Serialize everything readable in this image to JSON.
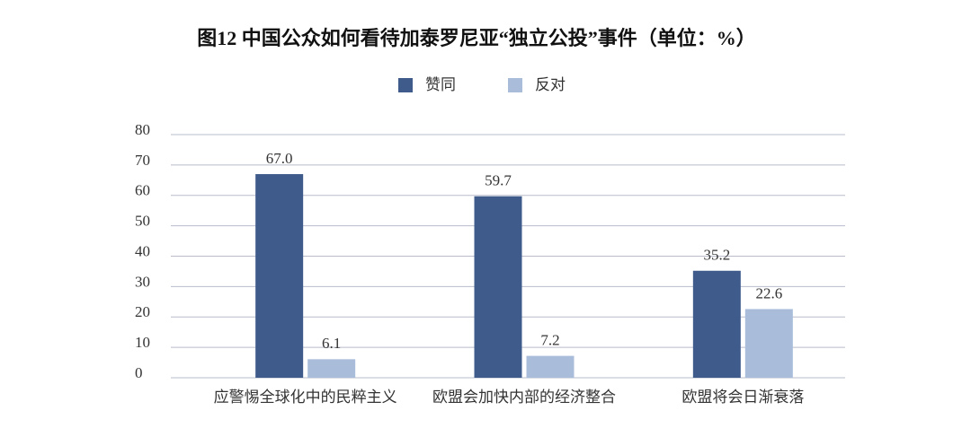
{
  "chart_data": {
    "type": "bar",
    "title": "图12 中国公众如何看待加泰罗尼亚“独立公投”事件（单位：%）",
    "categories": [
      "应警惕全球化中的民粹主义",
      "欧盟会加快内部的经济整合",
      "欧盟将会日渐衰落"
    ],
    "series": [
      {
        "name": "赞同",
        "color": "#3f5b8c",
        "values": [
          67.0,
          59.7,
          35.2
        ],
        "value_labels": [
          "67.0",
          "59.7",
          "35.2"
        ]
      },
      {
        "name": "反对",
        "color": "#a9bddb",
        "values": [
          6.1,
          7.2,
          22.6
        ],
        "value_labels": [
          "6.1",
          "7.2",
          "22.6"
        ]
      }
    ],
    "ylim": [
      0,
      80
    ],
    "yticks": [
      0,
      10,
      20,
      30,
      40,
      50,
      60,
      70,
      80
    ],
    "grid": true,
    "legend": "top"
  }
}
